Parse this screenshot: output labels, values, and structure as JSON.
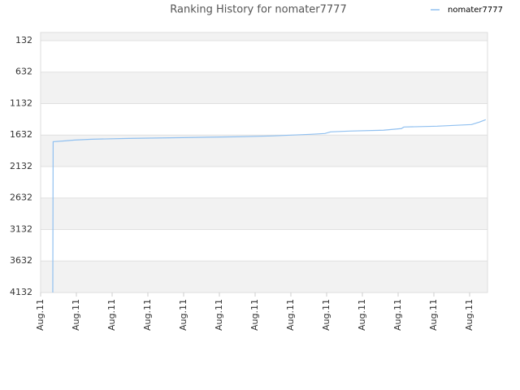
{
  "chart_data": {
    "type": "line",
    "title": "Ranking History for nomater7777",
    "series": [
      {
        "name": "nomater7777",
        "color": "#90c0f0",
        "x": [
          0.34,
          0.35,
          0.68,
          0.95,
          1.43,
          2.45,
          3.98,
          5.45,
          6.48,
          7.0,
          7.55,
          7.95,
          8.11,
          8.64,
          9.59,
          10.09,
          10.16,
          11.09,
          12.05,
          12.27,
          12.45
        ],
        "values": [
          4132,
          1737,
          1724,
          1711,
          1698,
          1685,
          1672,
          1659,
          1646,
          1633,
          1620,
          1607,
          1581,
          1568,
          1555,
          1529,
          1504,
          1491,
          1465,
          1426,
          1387
        ]
      }
    ],
    "xlim": [
      0,
      12.5
    ],
    "xticks": [
      {
        "value": 0,
        "label": "Aug.11"
      },
      {
        "value": 1,
        "label": "Aug.11"
      },
      {
        "value": 2,
        "label": "Aug.11"
      },
      {
        "value": 3,
        "label": "Aug.11"
      },
      {
        "value": 4,
        "label": "Aug.11"
      },
      {
        "value": 5,
        "label": "Aug.11"
      },
      {
        "value": 6,
        "label": "Aug.11"
      },
      {
        "value": 7,
        "label": "Aug.11"
      },
      {
        "value": 8,
        "label": "Aug.11"
      },
      {
        "value": 9,
        "label": "Aug.11"
      },
      {
        "value": 10,
        "label": "Aug.11"
      },
      {
        "value": 11,
        "label": "Aug.11"
      },
      {
        "value": 12,
        "label": "Aug.11"
      }
    ],
    "ylim": [
      4132,
      3
    ],
    "yticks": [
      132,
      632,
      1132,
      1632,
      2132,
      2632,
      3132,
      3632,
      4132
    ],
    "grid": true,
    "legend": "top-right"
  }
}
